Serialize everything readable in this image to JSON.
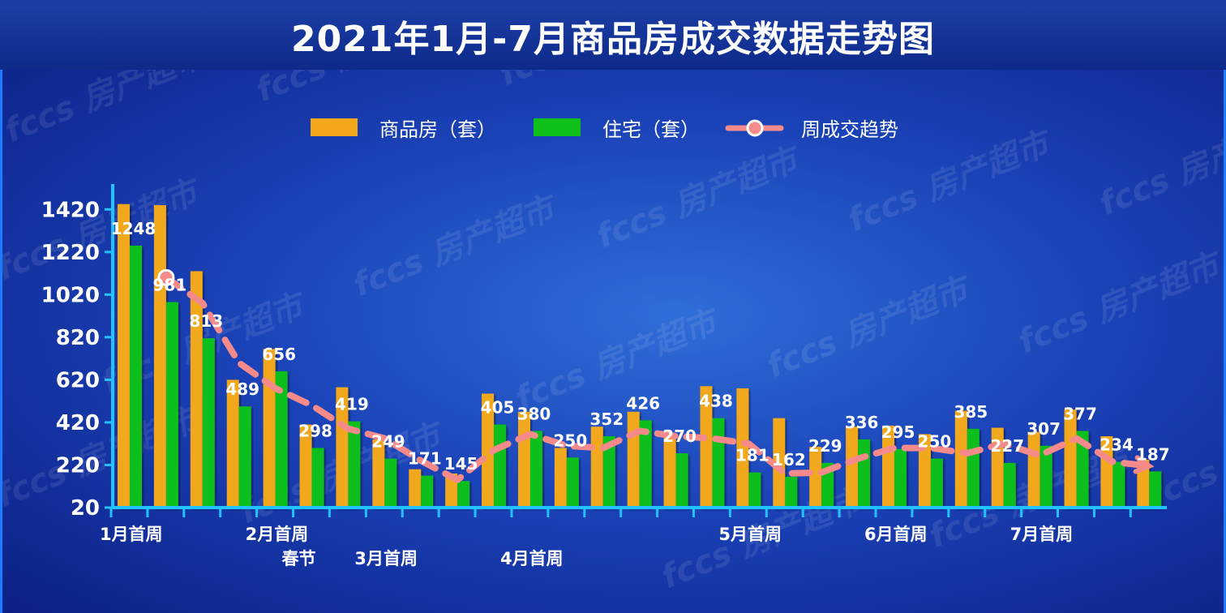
{
  "title": "2021年1月-7月商品房成交数据走势图",
  "watermark": "fccs 房产超市",
  "colors": {
    "commercial": "#f2a81a",
    "residential": "#0fbf1a",
    "trend": "#f58a8a",
    "axis": "#21c3ff"
  },
  "chart_data": {
    "type": "bar",
    "title": "2021年1月-7月商品房成交数据走势图",
    "ylim": [
      20,
      1520
    ],
    "yticks": [
      20,
      220,
      420,
      620,
      820,
      1020,
      1220,
      1420
    ],
    "grid": false,
    "legend_position": "top-center",
    "series": [
      {
        "name": "商品房（套）",
        "kind": "bar",
        "values": [
          1445,
          1440,
          1130,
          620,
          765,
          410,
          585,
          340,
          200,
          180,
          555,
          470,
          300,
          400,
          470,
          365,
          590,
          580,
          440,
          305,
          400,
          405,
          365,
          475,
          395,
          375,
          480,
          355,
          245
        ]
      },
      {
        "name": "住宅（套）",
        "kind": "bar",
        "values": [
          1250,
          985,
          815,
          495,
          660,
          300,
          425,
          250,
          170,
          145,
          410,
          380,
          255,
          355,
          430,
          275,
          440,
          185,
          165,
          230,
          340,
          295,
          250,
          390,
          230,
          310,
          380,
          235,
          190
        ]
      },
      {
        "name": "周成交趋势",
        "kind": "line",
        "style": "dashed",
        "values": [
          null,
          1100,
          980,
          700,
          580,
          500,
          390,
          345,
          240,
          150,
          290,
          365,
          310,
          300,
          380,
          355,
          345,
          320,
          180,
          185,
          250,
          300,
          300,
          275,
          320,
          265,
          345,
          235,
          215
        ]
      }
    ],
    "data_labels": [
      {
        "bar": 0,
        "text": "1248"
      },
      {
        "bar": 1,
        "text": "981"
      },
      {
        "bar": 2,
        "text": "813"
      },
      {
        "bar": 3,
        "text": "489"
      },
      {
        "bar": 4,
        "text": "656"
      },
      {
        "bar": 5,
        "text": "298"
      },
      {
        "bar": 6,
        "text": "419"
      },
      {
        "bar": 7,
        "text": "249"
      },
      {
        "bar": 8,
        "text": "171"
      },
      {
        "bar": 9,
        "text": "145"
      },
      {
        "bar": 10,
        "text": "405"
      },
      {
        "bar": 11,
        "text": "380"
      },
      {
        "bar": 12,
        "text": "250"
      },
      {
        "bar": 13,
        "text": "352"
      },
      {
        "bar": 14,
        "text": "426"
      },
      {
        "bar": 15,
        "text": "270"
      },
      {
        "bar": 16,
        "text": "438"
      },
      {
        "bar": 17,
        "text": "181"
      },
      {
        "bar": 18,
        "text": "162"
      },
      {
        "bar": 19,
        "text": "229"
      },
      {
        "bar": 20,
        "text": "336"
      },
      {
        "bar": 21,
        "text": "295"
      },
      {
        "bar": 22,
        "text": "250"
      },
      {
        "bar": 23,
        "text": "385"
      },
      {
        "bar": 24,
        "text": "227"
      },
      {
        "bar": 25,
        "text": "307"
      },
      {
        "bar": 26,
        "text": "377"
      },
      {
        "bar": 27,
        "text": "234"
      },
      {
        "bar": 28,
        "text": "187"
      }
    ],
    "x_labels": [
      {
        "week": 0,
        "text": "1月首周",
        "row": 1
      },
      {
        "week": 4,
        "text": "2月首周",
        "row": 1
      },
      {
        "week": 5,
        "text": "春节",
        "row": 2
      },
      {
        "week": 7,
        "text": "3月首周",
        "row": 2
      },
      {
        "week": 11,
        "text": "4月首周",
        "row": 2
      },
      {
        "week": 17,
        "text": "5月首周",
        "row": 1
      },
      {
        "week": 21,
        "text": "6月首周",
        "row": 1
      },
      {
        "week": 25,
        "text": "7月首周",
        "row": 1
      }
    ]
  }
}
